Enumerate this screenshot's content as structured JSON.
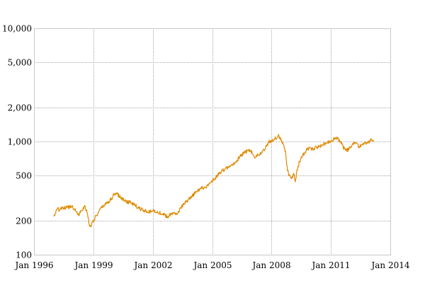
{
  "chart_data": {
    "type": "line",
    "title": "",
    "xlabel": "",
    "ylabel": "",
    "y_scale": "log",
    "grid": true,
    "legend": "none",
    "line_color": "#e08a00",
    "grid_color": "#a8a8a8",
    "xlim": [
      "1996-01-01",
      "2014-01-01"
    ],
    "ylim": [
      100,
      10000
    ],
    "x_ticks": [
      {
        "date": "1996-01-01",
        "label": "Jan 1996"
      },
      {
        "date": "1999-01-01",
        "label": "Jan 1999"
      },
      {
        "date": "2002-01-01",
        "label": "Jan 2002"
      },
      {
        "date": "2005-01-01",
        "label": "Jan 2005"
      },
      {
        "date": "2008-01-01",
        "label": "Jan 2008"
      },
      {
        "date": "2011-01-01",
        "label": "Jan 2011"
      },
      {
        "date": "2014-01-01",
        "label": "Jan 2014"
      }
    ],
    "y_ticks": [
      {
        "value": 10000,
        "label": "10,000"
      },
      {
        "value": 5000,
        "label": "5,000"
      },
      {
        "value": 2000,
        "label": "2,000"
      },
      {
        "value": 1000,
        "label": "1,000"
      },
      {
        "value": 500,
        "label": "500"
      },
      {
        "value": 200,
        "label": "200"
      },
      {
        "value": 100,
        "label": "100"
      }
    ],
    "series": [
      {
        "points": [
          [
            "1997-01-01",
            218
          ],
          [
            "1997-03-01",
            250
          ],
          [
            "1997-06-01",
            255
          ],
          [
            "1997-09-01",
            262
          ],
          [
            "1997-12-01",
            270
          ],
          [
            "1998-02-01",
            250
          ],
          [
            "1998-04-01",
            225
          ],
          [
            "1998-06-01",
            245
          ],
          [
            "1998-08-01",
            268
          ],
          [
            "1998-09-15",
            230
          ],
          [
            "1998-10-15",
            185
          ],
          [
            "1998-11-15",
            180
          ],
          [
            "1999-01-01",
            200
          ],
          [
            "1999-03-01",
            222
          ],
          [
            "1999-06-01",
            260
          ],
          [
            "1999-09-01",
            285
          ],
          [
            "1999-12-01",
            310
          ],
          [
            "2000-01-15",
            340
          ],
          [
            "2000-03-01",
            350
          ],
          [
            "2000-05-01",
            325
          ],
          [
            "2000-08-01",
            300
          ],
          [
            "2000-11-01",
            290
          ],
          [
            "2001-02-01",
            275
          ],
          [
            "2001-05-01",
            255
          ],
          [
            "2001-08-01",
            245
          ],
          [
            "2001-10-01",
            235
          ],
          [
            "2002-01-01",
            245
          ],
          [
            "2002-04-01",
            240
          ],
          [
            "2002-07-01",
            228
          ],
          [
            "2002-10-01",
            215
          ],
          [
            "2003-01-01",
            235
          ],
          [
            "2003-03-01",
            225
          ],
          [
            "2003-06-01",
            260
          ],
          [
            "2003-09-01",
            290
          ],
          [
            "2003-12-01",
            315
          ],
          [
            "2004-03-01",
            355
          ],
          [
            "2004-06-01",
            385
          ],
          [
            "2004-09-01",
            395
          ],
          [
            "2004-12-01",
            430
          ],
          [
            "2005-03-01",
            480
          ],
          [
            "2005-06-01",
            530
          ],
          [
            "2005-09-01",
            575
          ],
          [
            "2005-12-01",
            600
          ],
          [
            "2006-03-01",
            650
          ],
          [
            "2006-06-01",
            740
          ],
          [
            "2006-09-01",
            800
          ],
          [
            "2006-12-01",
            840
          ],
          [
            "2007-03-01",
            720
          ],
          [
            "2007-06-01",
            780
          ],
          [
            "2007-09-01",
            850
          ],
          [
            "2007-11-01",
            980
          ],
          [
            "2008-01-01",
            1020
          ],
          [
            "2008-03-01",
            1060
          ],
          [
            "2008-05-01",
            1120
          ],
          [
            "2008-06-15",
            1080
          ],
          [
            "2008-08-01",
            950
          ],
          [
            "2008-09-15",
            820
          ],
          [
            "2008-10-15",
            600
          ],
          [
            "2008-11-15",
            500
          ],
          [
            "2009-01-01",
            480
          ],
          [
            "2009-02-15",
            520
          ],
          [
            "2009-03-15",
            440
          ],
          [
            "2009-04-15",
            560
          ],
          [
            "2009-06-01",
            660
          ],
          [
            "2009-08-01",
            760
          ],
          [
            "2009-10-01",
            830
          ],
          [
            "2009-12-01",
            880
          ],
          [
            "2010-02-01",
            860
          ],
          [
            "2010-05-01",
            900
          ],
          [
            "2010-08-01",
            930
          ],
          [
            "2010-11-01",
            990
          ],
          [
            "2011-01-01",
            1020
          ],
          [
            "2011-03-01",
            1050
          ],
          [
            "2011-05-01",
            1060
          ],
          [
            "2011-07-01",
            1000
          ],
          [
            "2011-08-15",
            890
          ],
          [
            "2011-10-01",
            830
          ],
          [
            "2011-12-01",
            850
          ],
          [
            "2012-02-01",
            950
          ],
          [
            "2012-04-01",
            980
          ],
          [
            "2012-06-01",
            900
          ],
          [
            "2012-08-01",
            940
          ],
          [
            "2012-10-01",
            980
          ],
          [
            "2012-12-01",
            1000
          ],
          [
            "2013-01-15",
            1050
          ],
          [
            "2013-03-01",
            1020
          ]
        ]
      }
    ]
  }
}
